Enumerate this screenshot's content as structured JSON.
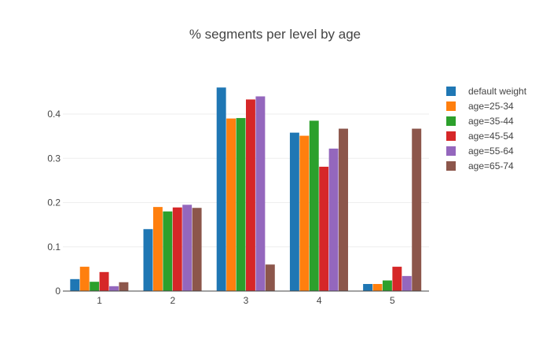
{
  "chart_data": {
    "type": "bar",
    "title": "% segments per level by age",
    "xlabel": "",
    "ylabel": "",
    "categories": [
      "1",
      "2",
      "3",
      "4",
      "5"
    ],
    "ylim": [
      0,
      0.48
    ],
    "yticks": [
      0,
      0.1,
      0.2,
      0.3,
      0.4
    ],
    "ytick_labels": [
      "0",
      "0.1",
      "0.2",
      "0.3",
      "0.4"
    ],
    "grid": true,
    "legend_position": "top-right",
    "series": [
      {
        "name": "default weight",
        "color": "#1f77b4",
        "values": [
          0.027,
          0.14,
          0.46,
          0.358,
          0.016
        ]
      },
      {
        "name": "age=25-34",
        "color": "#ff7f0e",
        "values": [
          0.055,
          0.19,
          0.39,
          0.351,
          0.016
        ]
      },
      {
        "name": "age=35-44",
        "color": "#2ca02c",
        "values": [
          0.021,
          0.18,
          0.391,
          0.385,
          0.024
        ]
      },
      {
        "name": "age=45-54",
        "color": "#d62728",
        "values": [
          0.043,
          0.189,
          0.433,
          0.281,
          0.055
        ]
      },
      {
        "name": "age=55-64",
        "color": "#9467bd",
        "values": [
          0.011,
          0.195,
          0.44,
          0.322,
          0.034
        ]
      },
      {
        "name": "age=65-74",
        "color": "#8c564b",
        "values": [
          0.02,
          0.188,
          0.06,
          0.367,
          0.367
        ]
      }
    ]
  }
}
